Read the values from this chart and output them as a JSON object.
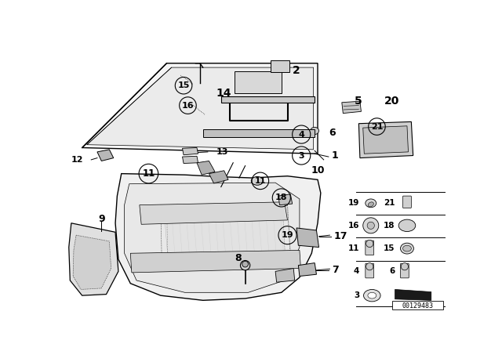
{
  "bg_color": "#ffffff",
  "watermark": "00129483",
  "fig_width": 6.4,
  "fig_height": 4.48,
  "dpi": 100
}
